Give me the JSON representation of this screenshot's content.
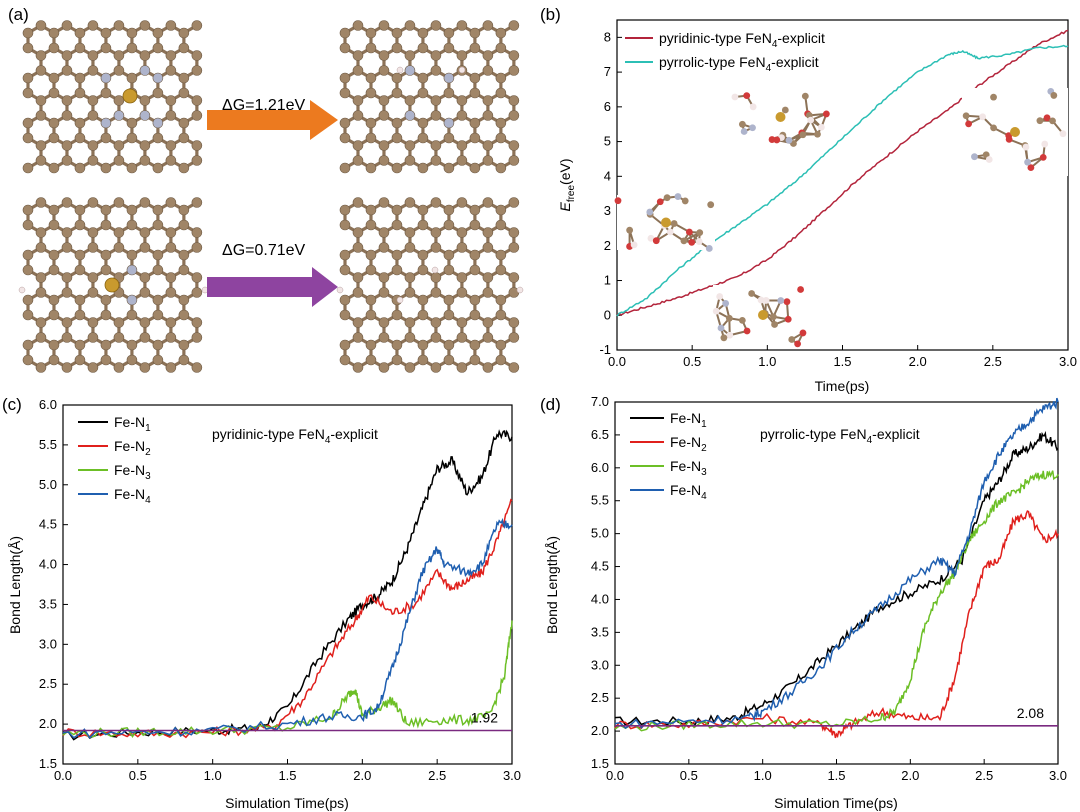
{
  "figure": {
    "panel_a": {
      "label": "(a)",
      "reaction_top": {
        "text": "ΔG=1.21eV",
        "arrow_color": "#ec7a1f"
      },
      "reaction_bottom": {
        "text": "ΔG=0.71eV",
        "arrow_color": "#8e44a0"
      },
      "atom_colors": {
        "carbon": "#a08567",
        "nitrogen": "#aeb4cc",
        "iron": "#c99a2e",
        "hydrogen": "#f2e6e6"
      }
    }
  },
  "chart_data": [
    {
      "type": "line",
      "panel": "(b)",
      "title": "",
      "xlabel": "Time(ps)",
      "ylabel_main": "E",
      "ylabel_sub": "free",
      "ylabel_unit": "(eV)",
      "xlim": [
        0,
        3.0
      ],
      "ylim": [
        -1,
        8.5
      ],
      "xticks": [
        0.0,
        0.5,
        1.0,
        1.5,
        2.0,
        2.5,
        3.0
      ],
      "yticks": [
        -1,
        0,
        1,
        2,
        3,
        4,
        5,
        6,
        7,
        8
      ],
      "legend_position": "top-center",
      "series": [
        {
          "name_main": "pyridinic-type FeN",
          "name_sub": "4",
          "name_tail": "-explicit",
          "color": "#b3243b",
          "x": [
            0,
            0.2,
            0.4,
            0.6,
            0.8,
            1.0,
            1.2,
            1.4,
            1.6,
            1.8,
            2.0,
            2.2,
            2.4,
            2.6,
            2.8,
            3.0
          ],
          "y": [
            0,
            0.25,
            0.5,
            0.8,
            1.1,
            1.6,
            2.3,
            3.1,
            3.9,
            4.6,
            5.3,
            5.9,
            6.6,
            7.2,
            7.8,
            8.2
          ]
        },
        {
          "name_main": "pyrrolic-type FeN",
          "name_sub": "4",
          "name_tail": "-explicit",
          "color": "#2cbfb5",
          "x": [
            0,
            0.2,
            0.4,
            0.6,
            0.8,
            1.0,
            1.2,
            1.4,
            1.6,
            1.8,
            2.0,
            2.2,
            2.3,
            2.4,
            2.6,
            2.8,
            3.0
          ],
          "y": [
            0,
            0.5,
            1.3,
            2.0,
            2.6,
            3.2,
            3.9,
            4.7,
            5.5,
            6.3,
            7.0,
            7.5,
            7.6,
            7.4,
            7.5,
            7.7,
            7.75
          ]
        }
      ]
    },
    {
      "type": "line",
      "panel": "(c)",
      "title_main": "pyridinic-type FeN",
      "title_sub": "4",
      "title_tail": "-explicit",
      "xlabel": "Simulation Time(ps)",
      "ylabel": "Bond Length(Å)",
      "xlim": [
        0,
        3.0
      ],
      "ylim": [
        1.5,
        6.0
      ],
      "xticks": [
        0.0,
        0.5,
        1.0,
        1.5,
        2.0,
        2.5,
        3.0
      ],
      "yticks": [
        1.5,
        2.0,
        2.5,
        3.0,
        3.5,
        4.0,
        4.5,
        5.0,
        5.5,
        6.0
      ],
      "reference_line": {
        "value": 1.92,
        "label": "1.92",
        "color": "#7a2a80"
      },
      "legend_position": "top-left",
      "series": [
        {
          "name_main": "Fe-N",
          "name_sub": "1",
          "color": "#000000",
          "x": [
            0,
            0.5,
            1.0,
            1.3,
            1.5,
            1.7,
            1.9,
            2.0,
            2.1,
            2.2,
            2.3,
            2.4,
            2.5,
            2.6,
            2.7,
            2.8,
            2.9,
            3.0
          ],
          "y": [
            1.85,
            1.9,
            1.92,
            1.95,
            2.2,
            2.8,
            3.3,
            3.5,
            3.6,
            3.8,
            4.2,
            4.7,
            5.2,
            5.3,
            4.9,
            5.1,
            5.65,
            5.6
          ]
        },
        {
          "name_main": "Fe-N",
          "name_sub": "2",
          "color": "#e0201c",
          "x": [
            0,
            0.5,
            1.0,
            1.4,
            1.6,
            1.8,
            1.95,
            2.05,
            2.2,
            2.35,
            2.5,
            2.6,
            2.7,
            2.8,
            2.9,
            3.0
          ],
          "y": [
            1.9,
            1.88,
            1.9,
            1.95,
            2.3,
            2.9,
            3.3,
            3.6,
            3.4,
            3.5,
            3.9,
            3.7,
            3.8,
            3.9,
            4.3,
            4.8
          ]
        },
        {
          "name_main": "Fe-N",
          "name_sub": "3",
          "color": "#6cbf26",
          "x": [
            0,
            0.5,
            1.0,
            1.5,
            1.8,
            1.9,
            1.95,
            2.0,
            2.1,
            2.2,
            2.3,
            2.5,
            2.7,
            2.85,
            2.95,
            3.0
          ],
          "y": [
            1.88,
            1.9,
            1.92,
            1.95,
            2.1,
            2.35,
            2.45,
            2.1,
            2.2,
            2.3,
            2.0,
            2.05,
            2.05,
            2.1,
            2.6,
            3.3
          ]
        },
        {
          "name_main": "Fe-N",
          "name_sub": "4",
          "color": "#1f5fb0",
          "x": [
            0,
            0.5,
            1.0,
            1.5,
            1.8,
            2.0,
            2.1,
            2.2,
            2.3,
            2.4,
            2.5,
            2.55,
            2.7,
            2.8,
            2.9,
            3.0
          ],
          "y": [
            1.88,
            1.9,
            1.92,
            2.0,
            2.1,
            2.1,
            2.2,
            2.7,
            3.3,
            3.9,
            4.2,
            4.0,
            3.9,
            4.0,
            4.5,
            4.5
          ]
        }
      ]
    },
    {
      "type": "line",
      "panel": "(d)",
      "title_main": "pyrrolic-type FeN",
      "title_sub": "4",
      "title_tail": "-explicit",
      "xlabel": "Simulation Time(ps)",
      "ylabel": "Bond Length(Å)",
      "xlim": [
        0,
        3.0
      ],
      "ylim": [
        1.5,
        7.0
      ],
      "xticks": [
        0.0,
        0.5,
        1.0,
        1.5,
        2.0,
        2.5,
        3.0
      ],
      "yticks": [
        1.5,
        2.0,
        2.5,
        3.0,
        3.5,
        4.0,
        4.5,
        5.0,
        5.5,
        6.0,
        6.5,
        7.0
      ],
      "reference_line": {
        "value": 2.08,
        "label": "2.08",
        "color": "#7a2a80"
      },
      "legend_position": "top-left",
      "series": [
        {
          "name_main": "Fe-N",
          "name_sub": "1",
          "color": "#000000",
          "x": [
            0,
            0.5,
            0.8,
            1.0,
            1.2,
            1.4,
            1.6,
            1.8,
            2.0,
            2.2,
            2.35,
            2.5,
            2.6,
            2.7,
            2.8,
            2.9,
            3.0
          ],
          "y": [
            2.15,
            2.15,
            2.2,
            2.4,
            2.7,
            3.1,
            3.5,
            3.9,
            4.1,
            4.3,
            4.6,
            5.5,
            5.8,
            6.2,
            6.3,
            6.5,
            6.3
          ]
        },
        {
          "name_main": "Fe-N",
          "name_sub": "2",
          "color": "#e0201c",
          "x": [
            0,
            0.5,
            1.0,
            1.4,
            1.5,
            1.6,
            1.8,
            2.0,
            2.2,
            2.3,
            2.4,
            2.5,
            2.6,
            2.7,
            2.8,
            2.9,
            3.0
          ],
          "y": [
            2.1,
            2.1,
            2.2,
            2.1,
            1.95,
            2.1,
            2.3,
            2.2,
            2.2,
            2.8,
            3.8,
            4.5,
            4.6,
            5.2,
            5.3,
            4.9,
            5.0
          ]
        },
        {
          "name_main": "Fe-N",
          "name_sub": "3",
          "color": "#6cbf26",
          "x": [
            0,
            0.5,
            1.0,
            1.5,
            1.8,
            1.9,
            2.0,
            2.1,
            2.2,
            2.3,
            2.4,
            2.5,
            2.6,
            2.7,
            2.8,
            2.9,
            3.0
          ],
          "y": [
            2.05,
            2.1,
            2.12,
            2.1,
            2.2,
            2.3,
            2.8,
            3.6,
            4.1,
            4.4,
            4.9,
            5.2,
            5.5,
            5.6,
            5.8,
            5.9,
            5.9
          ]
        },
        {
          "name_main": "Fe-N",
          "name_sub": "4",
          "color": "#1f5fb0",
          "x": [
            0,
            0.5,
            0.9,
            1.0,
            1.2,
            1.4,
            1.6,
            1.8,
            2.0,
            2.2,
            2.3,
            2.4,
            2.5,
            2.6,
            2.7,
            2.8,
            2.9,
            3.0
          ],
          "y": [
            2.1,
            2.15,
            2.2,
            2.3,
            2.6,
            3.0,
            3.5,
            3.9,
            4.3,
            4.6,
            4.4,
            5.0,
            5.8,
            6.2,
            6.5,
            6.7,
            6.9,
            7.0
          ]
        }
      ]
    }
  ]
}
